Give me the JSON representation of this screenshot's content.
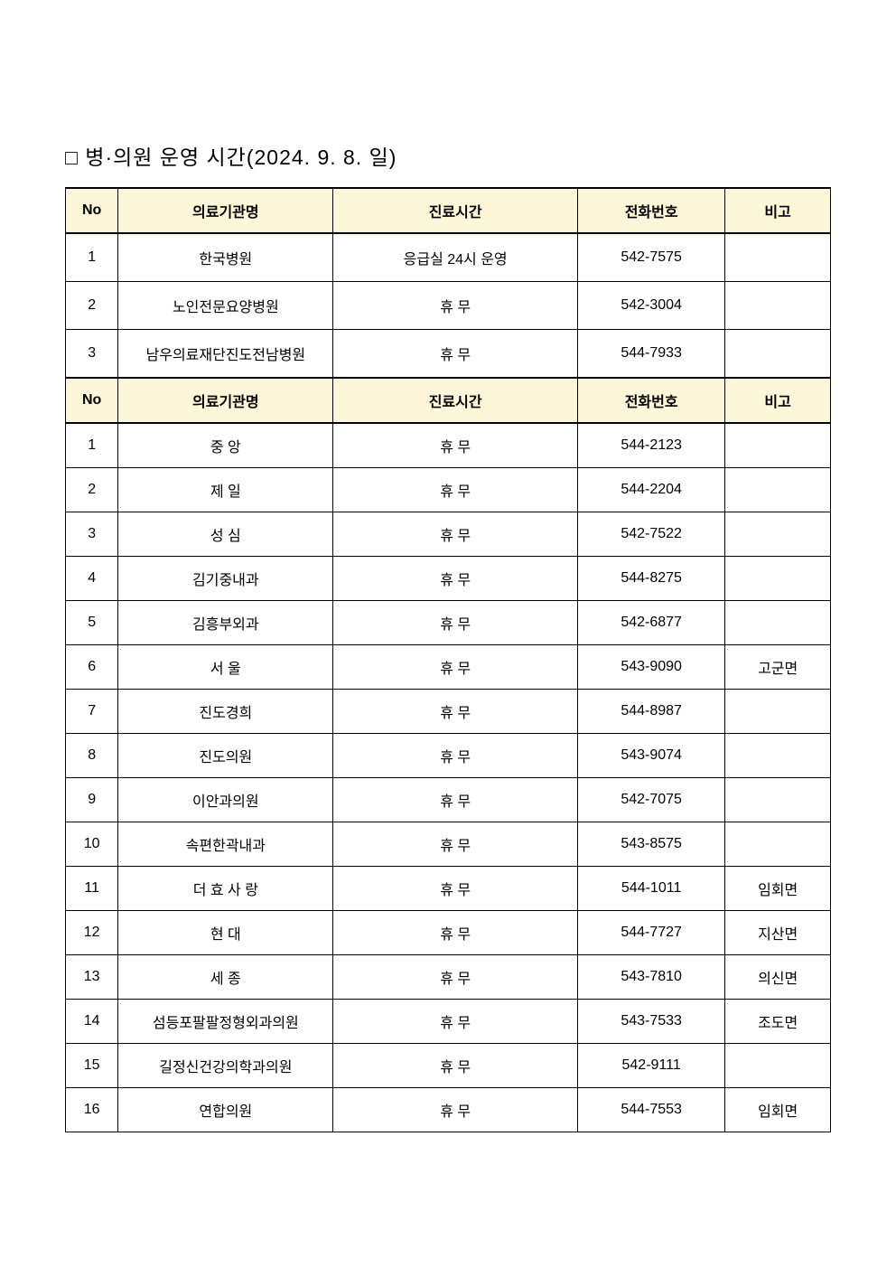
{
  "title": "□ 병·의원 운영 시간(2024. 9. 8. 일)",
  "columns": {
    "no": "No",
    "name": "의료기관명",
    "time": "진료시간",
    "phone": "전화번호",
    "note": "비고"
  },
  "section1": [
    {
      "no": "1",
      "name": "한국병원",
      "time": "응급실 24시 운영",
      "phone": "542-7575",
      "note": ""
    },
    {
      "no": "2",
      "name": "노인전문요양병원",
      "time": "휴 무",
      "phone": "542-3004",
      "note": ""
    },
    {
      "no": "3",
      "name": "남우의료재단진도전남병원",
      "time": "휴 무",
      "phone": "544-7933",
      "note": ""
    }
  ],
  "section2": [
    {
      "no": "1",
      "name": "중   앙",
      "time": "휴 무",
      "phone": "544-2123",
      "note": ""
    },
    {
      "no": "2",
      "name": "제   일",
      "time": "휴 무",
      "phone": "544-2204",
      "note": ""
    },
    {
      "no": "3",
      "name": "성   심",
      "time": "휴 무",
      "phone": "542-7522",
      "note": ""
    },
    {
      "no": "4",
      "name": "김기중내과",
      "time": "휴 무",
      "phone": "544-8275",
      "note": ""
    },
    {
      "no": "5",
      "name": "김흥부외과",
      "time": "휴 무",
      "phone": "542-6877",
      "note": ""
    },
    {
      "no": "6",
      "name": "서   울",
      "time": "휴 무",
      "phone": "543-9090",
      "note": "고군면"
    },
    {
      "no": "7",
      "name": "진도경희",
      "time": "휴 무",
      "phone": "544-8987",
      "note": ""
    },
    {
      "no": "8",
      "name": "진도의원",
      "time": "휴 무",
      "phone": "543-9074",
      "note": ""
    },
    {
      "no": "9",
      "name": "이안과의원",
      "time": "휴 무",
      "phone": "542-7075",
      "note": ""
    },
    {
      "no": "10",
      "name": "속편한곽내과",
      "time": "휴 무",
      "phone": "543-8575",
      "note": ""
    },
    {
      "no": "11",
      "name": "더 효 사 랑",
      "time": "휴 무",
      "phone": "544-1011",
      "note": "임회면"
    },
    {
      "no": "12",
      "name": "현    대",
      "time": "휴 무",
      "phone": "544-7727",
      "note": "지산면"
    },
    {
      "no": "13",
      "name": "세    종",
      "time": "휴 무",
      "phone": "543-7810",
      "note": "의신면"
    },
    {
      "no": "14",
      "name": "섬등포팔팔정형외과의원",
      "time": "휴 무",
      "phone": "543-7533",
      "note": "조도면"
    },
    {
      "no": "15",
      "name": "길정신건강의학과의원",
      "time": "휴 무",
      "phone": "542-9111",
      "note": ""
    },
    {
      "no": "16",
      "name": "연합의원",
      "time": "휴 무",
      "phone": "544-7553",
      "note": "임회면"
    }
  ],
  "style": {
    "header_bg": "#fdf6d9",
    "border_color": "#000000",
    "background": "#ffffff",
    "title_fontsize": 23,
    "header_fontsize": 16,
    "cell_fontsize": 16
  }
}
